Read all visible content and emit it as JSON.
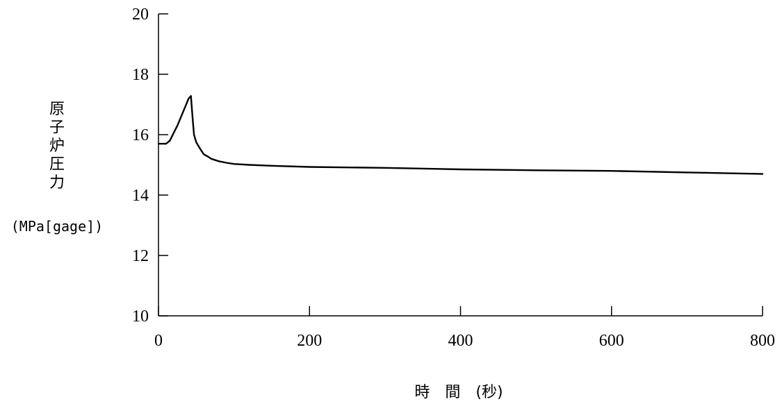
{
  "chart_data": {
    "type": "line",
    "ylabel": "原子炉圧力",
    "yunit": "(MPa[gage])",
    "xlabel": "時　間　(秒)",
    "xlim": [
      0,
      800
    ],
    "ylim": [
      10,
      20
    ],
    "xticks": [
      0,
      200,
      400,
      600,
      800
    ],
    "yticks": [
      10,
      12,
      14,
      16,
      18,
      20
    ],
    "grid": false,
    "series": [
      {
        "x": [
          0,
          5,
          10,
          15,
          20,
          25,
          30,
          35,
          40,
          43,
          45,
          47,
          50,
          53,
          56,
          60,
          65,
          70,
          80,
          90,
          100,
          120,
          150,
          200,
          300,
          400,
          500,
          600,
          700,
          800
        ],
        "y": [
          15.7,
          15.7,
          15.7,
          15.8,
          16.05,
          16.3,
          16.6,
          16.9,
          17.2,
          17.28,
          16.6,
          16.0,
          15.75,
          15.62,
          15.5,
          15.35,
          15.28,
          15.2,
          15.12,
          15.07,
          15.03,
          15.0,
          14.97,
          14.93,
          14.9,
          14.85,
          14.82,
          14.8,
          14.75,
          14.7
        ],
        "color": "#000000"
      }
    ]
  }
}
